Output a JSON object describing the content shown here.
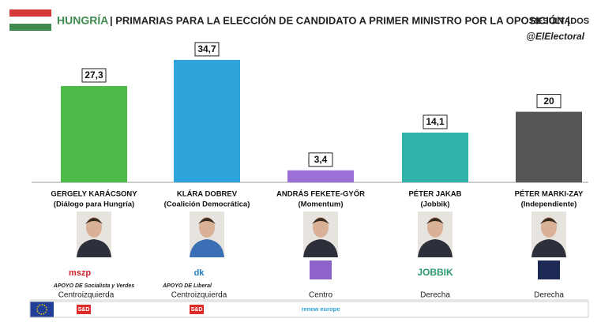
{
  "chart_data": {
    "type": "bar",
    "title_country": "HUNGRÍA",
    "title": "| PRIMARIAS PARA LA ELECCIÓN DE CANDIDATO A PRIMER MINISTRO POR LA OPOSICIÓN |",
    "title_suffix": "RESULTADOS",
    "source": "@ElElectoral",
    "categories": [
      "GERGELY KARÁCSONY",
      "KLÁRA DOBREV",
      "ANDRÁS FEKETE-GYŐR",
      "PÉTER JAKAB",
      "PÉTER MARKI-ZAY"
    ],
    "parties": [
      "(Diálogo para Hungría)",
      "(Coalición Democrática)",
      "(Momentum)",
      "(Jobbik)",
      "(Independiente)"
    ],
    "values": [
      27.3,
      34.7,
      3.4,
      14.1,
      20
    ],
    "value_labels": [
      "27,3",
      "34,7",
      "3,4",
      "14,1",
      "20"
    ],
    "colors": [
      "#4cbb47",
      "#2ea3dc",
      "#9b6fd6",
      "#2fb3a8",
      "#555555"
    ],
    "support": [
      "APOYO DE Socialista y Verdes",
      "APOYO DE Liberal",
      null,
      null,
      null
    ],
    "logos": [
      "mszp",
      "dk",
      null,
      "JOBBIK",
      null
    ],
    "ideology": [
      "Centroizquierda",
      "Centroizquierda",
      "Centro",
      "Derecha",
      "Derecha"
    ],
    "eu_groups": [
      "S&D",
      "S&D",
      "renew europe",
      null,
      null
    ]
  }
}
